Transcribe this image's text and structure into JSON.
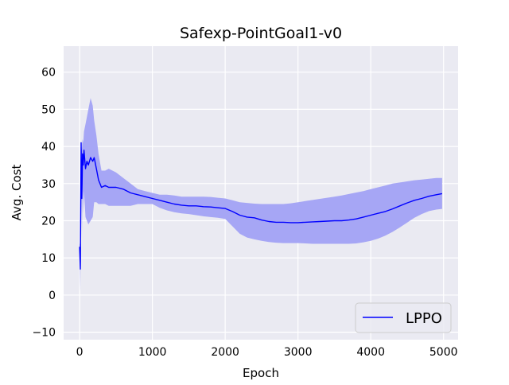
{
  "chart_data": {
    "type": "line",
    "title": "Safexp-PointGoal1-v0",
    "xlabel": "Epoch",
    "ylabel": "Avg. Cost",
    "xlim": [
      -220,
      5200
    ],
    "ylim": [
      -12,
      67
    ],
    "xticks": [
      0,
      1000,
      2000,
      3000,
      4000,
      5000
    ],
    "yticks": [
      -10,
      0,
      10,
      20,
      30,
      40,
      50,
      60
    ],
    "grid": true,
    "legend_position": "lower-right",
    "background_color": "#eaeaf2",
    "series": [
      {
        "name": "LPPO",
        "color": "#0000ff",
        "band_color": "#a6a6f5",
        "x": [
          0,
          10,
          20,
          30,
          40,
          50,
          60,
          80,
          100,
          120,
          150,
          180,
          200,
          230,
          260,
          300,
          350,
          400,
          500,
          600,
          700,
          800,
          900,
          1000,
          1100,
          1200,
          1300,
          1400,
          1500,
          1600,
          1700,
          1800,
          1900,
          2000,
          2100,
          2200,
          2300,
          2400,
          2500,
          2600,
          2700,
          2800,
          2900,
          3000,
          3100,
          3200,
          3300,
          3400,
          3500,
          3600,
          3700,
          3800,
          3900,
          4000,
          4100,
          4200,
          4300,
          4400,
          4500,
          4600,
          4700,
          4800,
          4900,
          4980
        ],
        "mean": [
          13,
          7,
          41,
          26,
          38,
          35,
          39,
          34,
          36,
          35,
          37,
          36,
          37,
          34,
          31,
          29,
          29.5,
          29,
          29,
          28.5,
          27.5,
          27,
          26.5,
          26,
          25.5,
          25,
          24.5,
          24.2,
          24,
          24,
          23.8,
          23.7,
          23.5,
          23.3,
          22.5,
          21.5,
          21,
          20.8,
          20.2,
          19.8,
          19.6,
          19.6,
          19.5,
          19.5,
          19.6,
          19.7,
          19.8,
          19.9,
          20,
          20,
          20.2,
          20.5,
          21,
          21.5,
          22,
          22.5,
          23.2,
          24,
          24.8,
          25.5,
          26,
          26.6,
          27,
          27.3
        ],
        "upper": [
          14,
          13,
          40,
          39,
          42,
          41,
          44,
          46,
          48,
          50,
          53,
          51,
          47,
          43,
          38,
          33.5,
          33.5,
          34,
          33,
          31.5,
          30,
          28.5,
          28,
          27.5,
          27,
          27,
          26.8,
          26.5,
          26.5,
          26.5,
          26.5,
          26.4,
          26.2,
          26,
          25.5,
          25,
          24.8,
          24.6,
          24.5,
          24.5,
          24.5,
          24.5,
          24.7,
          25,
          25.3,
          25.6,
          25.9,
          26.2,
          26.5,
          26.8,
          27.2,
          27.6,
          28,
          28.5,
          29,
          29.5,
          30,
          30.3,
          30.6,
          30.9,
          31.1,
          31.3,
          31.5,
          31.5
        ],
        "lower": [
          12,
          1,
          36,
          15,
          30,
          22,
          28,
          21,
          20,
          19,
          20,
          21,
          25,
          25,
          24.5,
          24.5,
          24.5,
          24,
          24,
          24,
          24,
          24.5,
          24.5,
          24.5,
          23.5,
          22.8,
          22.3,
          22,
          21.8,
          21.5,
          21.2,
          21,
          20.8,
          20.5,
          18.5,
          16.5,
          15.5,
          15,
          14.6,
          14.3,
          14.1,
          14,
          14,
          14,
          13.9,
          13.8,
          13.8,
          13.8,
          13.8,
          13.8,
          13.8,
          13.9,
          14.2,
          14.6,
          15.2,
          16,
          17,
          18.2,
          19.5,
          20.8,
          21.8,
          22.6,
          23,
          23.2
        ]
      }
    ]
  }
}
